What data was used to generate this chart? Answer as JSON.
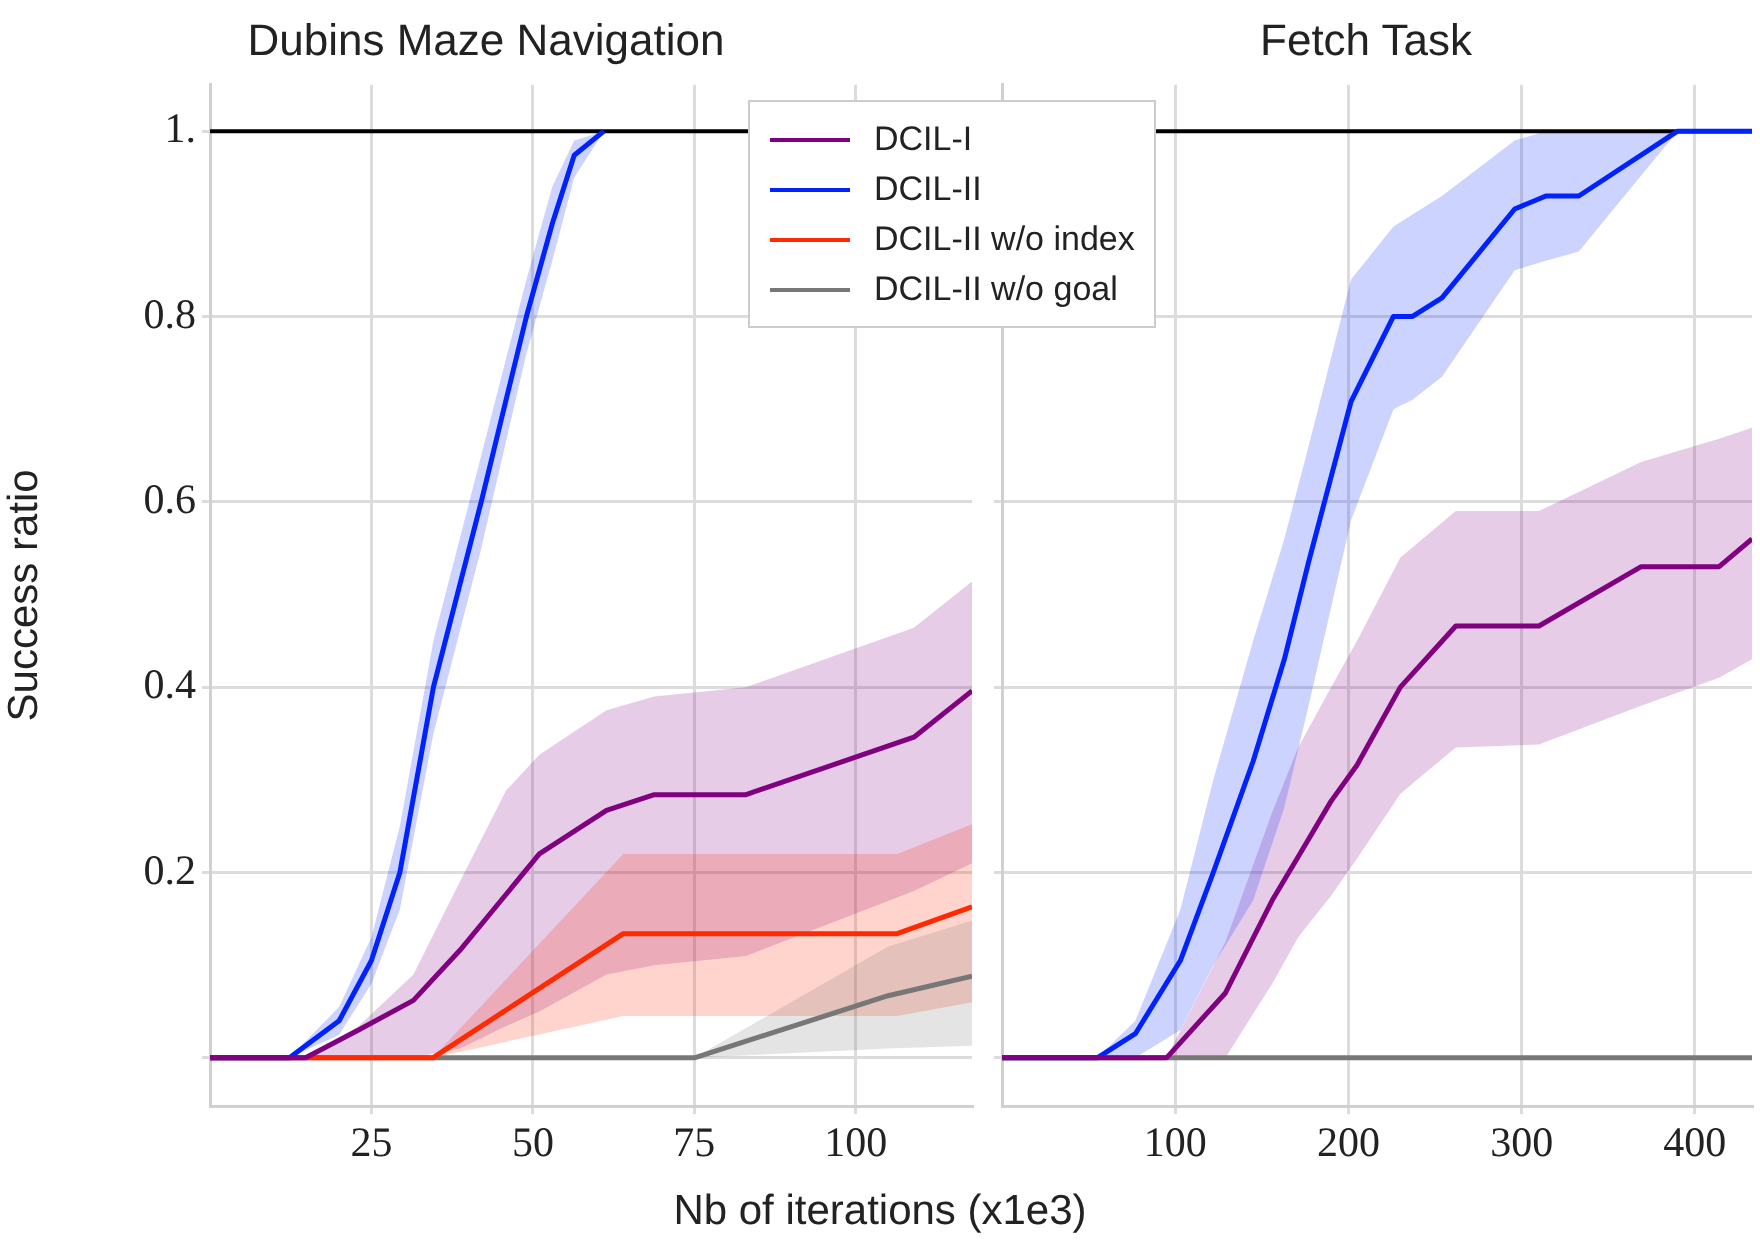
{
  "chart_data": [
    {
      "type": "line",
      "title": "Dubins Maze Navigation",
      "xlabel": "Nb of iterations (x1e3)",
      "ylabel": "Success ratio",
      "xlim": [
        0,
        118
      ],
      "xticks": [
        25,
        50,
        75,
        100
      ],
      "ylim": [
        -0.052,
        1.05
      ],
      "yticks": [
        {
          "value": 0,
          "label": null
        },
        0.2,
        0.4,
        0.6,
        0.8,
        {
          "value": 1,
          "label": "1."
        }
      ],
      "grid": true,
      "legend": "top right",
      "marker": "none",
      "ref_lines": [
        {
          "axis": "y",
          "value": 1,
          "color": "#000000"
        }
      ],
      "series": [
        {
          "name": "DCIL-I",
          "color": "#800080",
          "x": [
            0,
            14.8,
            23,
            31.5,
            38.7,
            45.8,
            51,
            61.4,
            68.8,
            83,
            109,
            118
          ],
          "values": [
            0,
            0,
            0.03,
            0.062,
            0.116,
            0.176,
            0.22,
            0.267,
            0.284,
            0.284,
            0.346,
            0.396
          ],
          "upper": [
            0,
            0,
            0.034,
            0.09,
            0.19,
            0.288,
            0.327,
            0.375,
            0.39,
            0.4,
            0.464,
            0.514
          ],
          "lower": [
            0,
            0,
            0,
            0,
            0.01,
            0.034,
            0.05,
            0.09,
            0.1,
            0.11,
            0.18,
            0.21
          ]
        },
        {
          "name": "DCIL-II",
          "color": "#0022ff",
          "x": [
            0,
            12.3,
            20,
            25,
            29.4,
            34.6,
            42,
            49,
            53,
            56.4,
            61
          ],
          "values": [
            0,
            0,
            0.04,
            0.105,
            0.2,
            0.4,
            0.6,
            0.8,
            0.9,
            0.974,
            1
          ],
          "upper": [
            0,
            0,
            0.055,
            0.13,
            0.25,
            0.45,
            0.65,
            0.84,
            0.94,
            0.99,
            1
          ],
          "lower": [
            0,
            0,
            0.025,
            0.08,
            0.16,
            0.35,
            0.55,
            0.76,
            0.86,
            0.95,
            1
          ]
        },
        {
          "name": "DCIL-II w/o index",
          "color": "#ff2a00",
          "x": [
            0,
            34.5,
            64,
            106.4,
            118
          ],
          "values": [
            0,
            0,
            0.134,
            0.134,
            0.163
          ],
          "upper": [
            0,
            0,
            0.22,
            0.22,
            0.252
          ],
          "lower": [
            0,
            0,
            0.045,
            0.045,
            0.06
          ]
        },
        {
          "name": "DCIL-II w/o goal",
          "color": "#777777",
          "x": [
            0,
            75,
            105,
            118
          ],
          "values": [
            0,
            0,
            0.067,
            0.088
          ],
          "upper": [
            0,
            0,
            0.12,
            0.148
          ],
          "lower": [
            0,
            0,
            0.01,
            0.013
          ]
        }
      ]
    },
    {
      "type": "line",
      "title": "Fetch Task",
      "xlim": [
        0,
        433
      ],
      "xticks": [
        100,
        200,
        300,
        400
      ],
      "ylim": [
        -0.052,
        1.05
      ],
      "yticks": [
        0,
        0.2,
        0.4,
        0.6,
        0.8,
        1
      ],
      "tick_labels": "x",
      "grid": true,
      "marker": "none",
      "ref_lines": [
        {
          "axis": "y",
          "value": 1,
          "color": "#000000"
        }
      ],
      "series": [
        {
          "color": "#800080",
          "x": [
            0,
            95,
            129,
            156,
            171,
            190,
            205,
            230,
            262,
            310,
            369,
            414,
            433
          ],
          "values": [
            0,
            0,
            0.07,
            0.17,
            0.217,
            0.277,
            0.316,
            0.4,
            0.466,
            0.466,
            0.53,
            0.53,
            0.56
          ],
          "upper": [
            0,
            0,
            0.125,
            0.265,
            0.335,
            0.4,
            0.45,
            0.54,
            0.59,
            0.59,
            0.643,
            0.668,
            0.68
          ],
          "lower": [
            0,
            0,
            0,
            0.08,
            0.13,
            0.175,
            0.215,
            0.285,
            0.335,
            0.338,
            0.38,
            0.41,
            0.43
          ]
        },
        {
          "color": "#0022ff",
          "x": [
            0,
            55,
            77,
            103,
            122,
            145,
            163,
            177,
            201.5,
            226,
            237,
            254,
            296,
            314,
            333,
            390,
            433
          ],
          "values": [
            0,
            0,
            0.026,
            0.105,
            0.2,
            0.32,
            0.43,
            0.535,
            0.708,
            0.8,
            0.8,
            0.82,
            0.916,
            0.93,
            0.93,
            1,
            1
          ],
          "upper": [
            0,
            0,
            0.04,
            0.16,
            0.3,
            0.45,
            0.56,
            0.66,
            0.84,
            0.897,
            0.91,
            0.93,
            0.99,
            1,
            1,
            1,
            1
          ],
          "lower": [
            0,
            0,
            0,
            0.03,
            0.1,
            0.17,
            0.27,
            0.38,
            0.58,
            0.7,
            0.71,
            0.735,
            0.85,
            0.86,
            0.87,
            1,
            1
          ]
        },
        {
          "color": "#777777",
          "x": [
            0,
            433
          ],
          "values": [
            0,
            0
          ]
        }
      ]
    }
  ]
}
